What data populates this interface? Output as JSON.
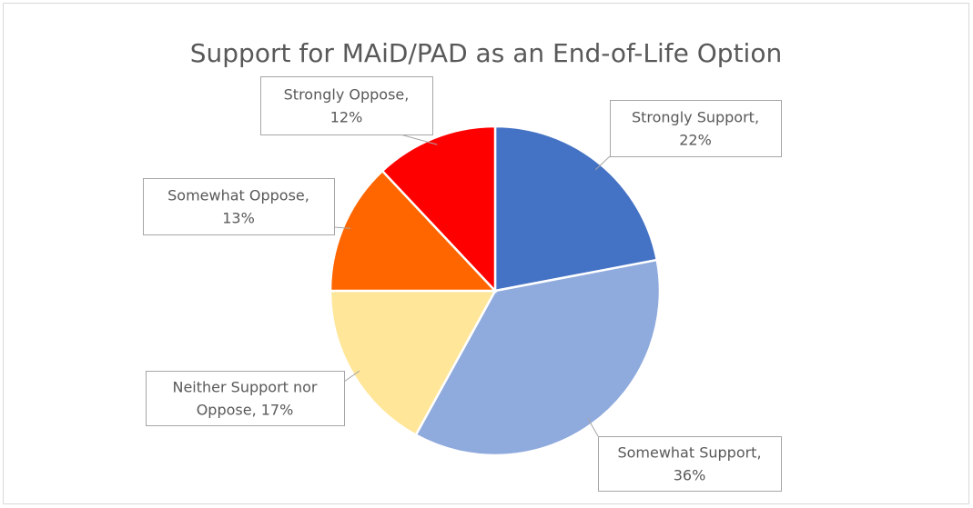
{
  "chart_data": {
    "type": "pie",
    "title": "Support for MAiD/PAD as an End-of-Life Option",
    "values": [
      22,
      36,
      17,
      13,
      12
    ],
    "value_labels": [
      "Strongly Support, 22%",
      "Somewhat Support, 36%",
      "Neither Support nor Oppose, 17%",
      "Somewhat Oppose, 13%",
      "Strongly Oppose, 12%"
    ],
    "colors": [
      "#4472c4",
      "#8faadc",
      "#ffe699",
      "#ff6600",
      "#ff0000"
    ]
  }
}
